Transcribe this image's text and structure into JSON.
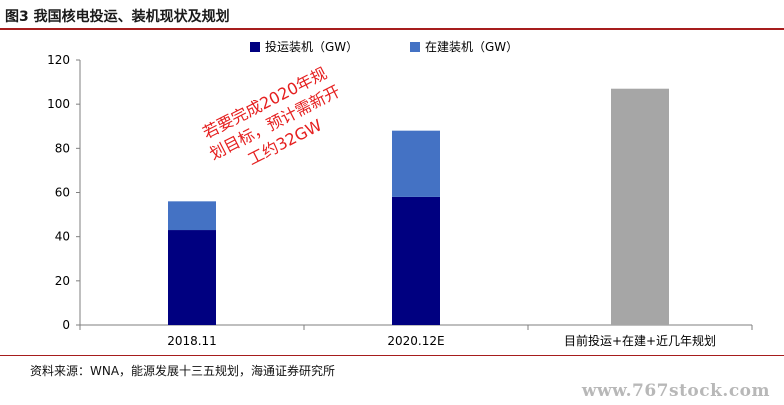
{
  "header": {
    "title": "图3  我国核电投运、装机现状及规划"
  },
  "chart_data": {
    "type": "bar",
    "stacked": true,
    "categories": [
      "2018.11",
      "2020.12E",
      "目前投运+在建+近几年规划"
    ],
    "series": [
      {
        "name": "投运装机（GW）",
        "color": "#000080",
        "values": [
          43,
          58,
          null
        ]
      },
      {
        "name": "在建装机（GW）",
        "color": "#4472c4",
        "values": [
          13,
          30,
          null
        ]
      },
      {
        "name": "",
        "color": "#a6a6a6",
        "values": [
          null,
          null,
          107
        ]
      }
    ],
    "yticks": [
      "0",
      "20",
      "40",
      "60",
      "80",
      "100",
      "120"
    ],
    "ylim": [
      0,
      120
    ],
    "legend_position": "top",
    "annotation": "若要完成2020年规划目标，预计需新开工约32GW"
  },
  "source": "资料来源：WNA，能源发展十三五规划，海通证券研究所",
  "watermark": "www.767stock.com"
}
